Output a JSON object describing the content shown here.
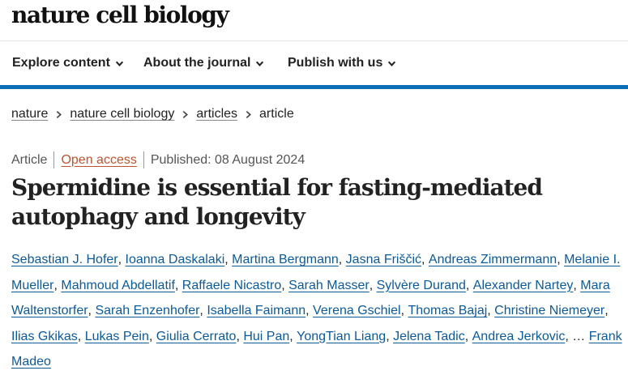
{
  "site": {
    "logo": "nature cell biology"
  },
  "nav": {
    "items": [
      "Explore content",
      "About the journal",
      "Publish with us"
    ]
  },
  "breadcrumb": {
    "items": [
      "nature",
      "nature cell biology",
      "articles"
    ],
    "current": "article"
  },
  "article": {
    "type": "Article",
    "access": "Open access",
    "published": "Published: 08 August 2024",
    "title": "Spermidine is essential for fasting-mediated autophagy and longevity"
  },
  "authors": {
    "names": [
      "Sebastian J. Hofer",
      "Ioanna Daskalaki",
      "Martina Bergmann",
      "Jasna Friščić",
      "Andreas Zimmermann",
      "Melanie I. Mueller",
      "Mahmoud Abdellatif",
      "Raffaele Nicastro",
      "Sarah Masser",
      "Sylvère Durand",
      "Alexander Nartey",
      "Mara Waltenstorfer",
      "Sarah Enzenhofer",
      "Isabella Faimann",
      "Verena Gschiel",
      "Thomas Bajaj",
      "Christine Niemeyer",
      "Ilias Gkikas",
      "Lukas Pein",
      "Giulia Cerrato",
      "Hui Pan",
      "YongTian Liang",
      "Jelena Tadic",
      "Andrea Jerkovic"
    ],
    "ellipsis": "…",
    "last": "Frank Madeo"
  },
  "icons": {
    "nav_dropdown": "chevron-down-icon",
    "breadcrumb_separator": "chevron-right-icon"
  },
  "colors": {
    "accent_bar": "#0a6fb6",
    "author_link": "#0b5a9a",
    "open_access": "#c0532e"
  }
}
